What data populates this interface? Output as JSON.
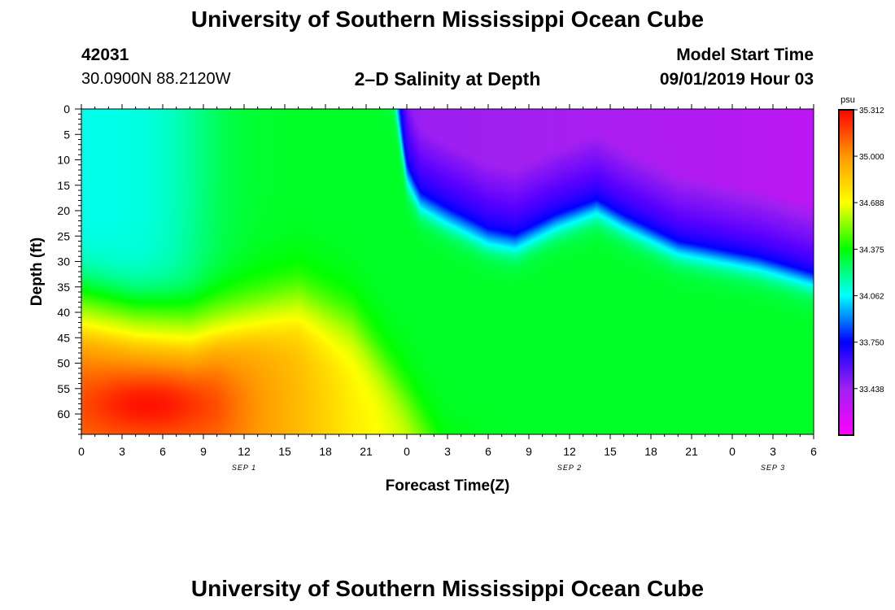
{
  "page": {
    "title_top": "University of Southern Mississippi Ocean Cube",
    "title_bottom": "University of Southern Mississippi Ocean Cube",
    "station_id": "42031",
    "station_location": "30.0900N 88.2120W",
    "plot_title": "2–D Salinity at Depth",
    "model_start_label": "Model Start Time",
    "model_start_value": "09/01/2019 Hour 03"
  },
  "chart_data": {
    "type": "heatmap",
    "title": "2–D Salinity at Depth",
    "xlabel": "Forecast Time(Z)",
    "ylabel": "Depth (ft)",
    "x_hours_range": [
      0,
      54
    ],
    "y_depth_range_ft": [
      0,
      64
    ],
    "x_tick_labels": [
      "0",
      "3",
      "6",
      "9",
      "12",
      "15",
      "18",
      "21",
      "0",
      "3",
      "6",
      "9",
      "12",
      "15",
      "18",
      "21",
      "0",
      "3",
      "6"
    ],
    "x_minor_ticks_per_interval": 2,
    "date_labels": [
      {
        "text": "SEP 1",
        "hour": 12
      },
      {
        "text": "SEP 2",
        "hour": 36
      },
      {
        "text": "SEP 3",
        "hour": 51
      }
    ],
    "y_ticks": [
      0,
      5,
      10,
      15,
      20,
      25,
      30,
      35,
      40,
      45,
      50,
      55,
      60
    ],
    "colorbar": {
      "unit": "psu",
      "min": 33.125,
      "max": 35.312,
      "tick_values": [
        35.312,
        35.0,
        34.688,
        34.375,
        34.062,
        33.75,
        33.438
      ],
      "tick_labels": [
        "35.312",
        "35.000",
        "34.688",
        "34.375",
        "34.062",
        "33.750",
        "33.438"
      ],
      "colors": [
        "#ff00ff",
        "#a020f0",
        "#0000ff",
        "#00ffff",
        "#00ff00",
        "#ffff00",
        "#ff9900",
        "#ff0000"
      ]
    },
    "field_description": "Approximate salinity field: fresher (33.3-34.0 psu) water above a front that descends from ~0 ft at hour 23 to ~22 ft at hour 27, ~19 ft at hour 38, ~33 ft at hour 54; ~34.4 psu near-surface water at hours 0-8 down to ~30 ft; saltier water (34.9-35.3 psu) at depth before hour 24, peaking ~35.2 psu near 58 ft at hour 5."
  }
}
